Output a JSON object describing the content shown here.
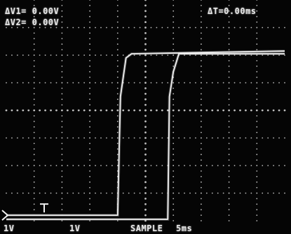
{
  "readouts": {
    "delta_v1": "ΔV1= 0.00V",
    "delta_v2": "ΔV2= 0.00V",
    "delta_t": "ΔT=0.00ms"
  },
  "footer": {
    "ch1_scale": "1V",
    "ch2_scale": "1V",
    "acquisition_mode": "SAMPLE",
    "timebase": "5ms"
  },
  "display": {
    "trace_color": "#f2f2f2",
    "graticule_color": "#bdbdbd",
    "background_color": "#050505"
  },
  "chart_data": {
    "type": "line",
    "xlabel": "",
    "ylabel": "",
    "xlim": [
      0,
      10
    ],
    "ylim": [
      -4,
      4
    ],
    "grid": true,
    "series": [
      {
        "x": [
          0,
          4.0,
          4.1,
          4.3,
          4.5,
          10
        ],
        "y": [
          -3.8,
          -3.8,
          0.5,
          1.9,
          2.05,
          2.15
        ]
      },
      {
        "x": [
          0,
          5.8,
          5.86,
          6.0,
          6.2,
          10
        ],
        "y": [
          -3.95,
          -3.95,
          0.5,
          1.4,
          2.05,
          2.05
        ]
      }
    ]
  }
}
